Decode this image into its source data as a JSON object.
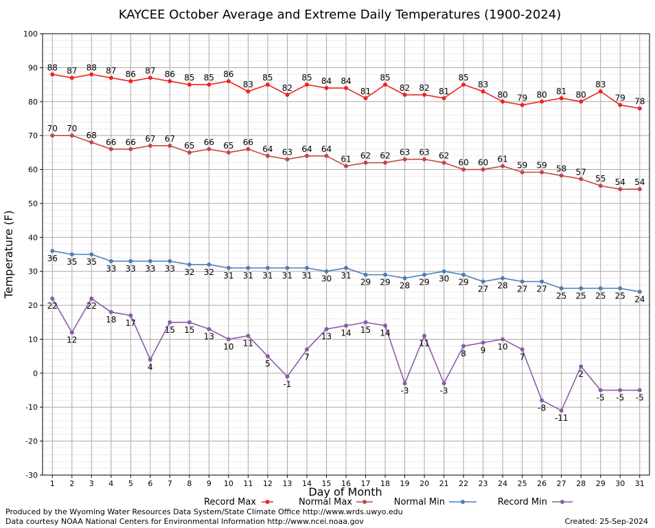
{
  "chart_data": {
    "type": "line",
    "title": "KAYCEE October Average and Extreme Daily Temperatures (1900-2024)",
    "xlabel": "Day of Month",
    "ylabel": "Temperature (F)",
    "x": [
      1,
      2,
      3,
      4,
      5,
      6,
      7,
      8,
      9,
      10,
      11,
      12,
      13,
      14,
      15,
      16,
      17,
      18,
      19,
      20,
      21,
      22,
      23,
      24,
      25,
      26,
      27,
      28,
      29,
      30,
      31
    ],
    "xlim": [
      0.5,
      31.5
    ],
    "ylim": [
      -30,
      100
    ],
    "yticks": [
      -30,
      -20,
      -10,
      0,
      10,
      20,
      30,
      40,
      50,
      60,
      70,
      80,
      90,
      100
    ],
    "grid": true,
    "legend_position": "bottom",
    "series": [
      {
        "name": "Record Max",
        "color": "#ee2222",
        "values": [
          88,
          87,
          88,
          87,
          86,
          87,
          86,
          85,
          85,
          86,
          83,
          85,
          82,
          85,
          84,
          84,
          81,
          85,
          82,
          82,
          81,
          85,
          83,
          80,
          79,
          80,
          81,
          80,
          83,
          79,
          78
        ],
        "label_values": [
          "88",
          "87",
          "88",
          "87",
          "86",
          "87",
          "86",
          "85",
          "85",
          "86",
          "83",
          "85",
          "82",
          "85",
          "84",
          "84",
          "81",
          "85",
          "82",
          "82",
          "81",
          "85",
          "83",
          "80",
          "79",
          "80",
          "81",
          "80",
          "83",
          "79",
          "78"
        ]
      },
      {
        "name": "Normal Max",
        "color": "#c04848",
        "values": [
          70,
          70,
          68,
          66,
          66,
          67,
          67,
          65,
          66,
          65,
          66,
          64,
          63,
          64,
          64,
          61,
          62,
          62,
          63,
          63,
          62,
          60,
          60,
          61,
          59.2,
          59.2,
          58.2,
          57.2,
          55.2,
          54.2,
          54.2
        ],
        "label_values": [
          "70",
          "70",
          "68",
          "66",
          "66",
          "67",
          "67",
          "65",
          "66",
          "65",
          "66",
          "64",
          "63",
          "64",
          "64",
          "61",
          "62",
          "62",
          "63",
          "63",
          "62",
          "60",
          "60",
          "61",
          "59",
          "59",
          "58",
          "57",
          "55",
          "54",
          "54"
        ]
      },
      {
        "name": "Normal Min",
        "color": "#4a7fb5",
        "values": [
          36,
          35,
          35,
          33,
          33,
          33,
          33,
          32,
          32,
          31,
          31,
          31,
          31,
          31,
          30,
          31,
          29,
          29,
          28,
          29,
          30,
          29,
          27,
          28,
          27,
          27,
          25,
          25,
          25,
          25,
          24
        ],
        "label_values": [
          "36",
          "35",
          "35",
          "33",
          "33",
          "33",
          "33",
          "32",
          "32",
          "31",
          "31",
          "31",
          "31",
          "31",
          "30",
          "31",
          "29",
          "29",
          "28",
          "29",
          "30",
          "29",
          "27",
          "28",
          "27",
          "27",
          "25",
          "25",
          "25",
          "25",
          "24"
        ]
      },
      {
        "name": "Record Min",
        "color": "#8a5ca8",
        "values": [
          22,
          12,
          22,
          18,
          17,
          4,
          15,
          15,
          13,
          10,
          11,
          5,
          -1,
          7,
          13,
          14,
          15,
          14,
          -3,
          11,
          -3,
          8,
          9,
          10,
          7,
          -8,
          -11,
          2,
          -5,
          -5,
          -5
        ],
        "label_values": [
          "22",
          "12",
          "22",
          "18",
          "17",
          "4",
          "15",
          "15",
          "13",
          "10",
          "11",
          "5",
          "-1",
          "7",
          "13",
          "14",
          "15",
          "14",
          "-3",
          "11",
          "-3",
          "8",
          "9",
          "10",
          "7",
          "-8",
          "-11",
          "2",
          "-5",
          "-5",
          "-5"
        ]
      }
    ]
  },
  "footer": {
    "produced_by": "Produced by the Wyoming Water Resources Data System/State Climate Office http://www.wrds.uwyo.edu",
    "courtesy": "Data courtesy NOAA National Centers for Environmental Information http://www.ncei.noaa.gov",
    "created": "Created:  25-Sep-2024"
  }
}
